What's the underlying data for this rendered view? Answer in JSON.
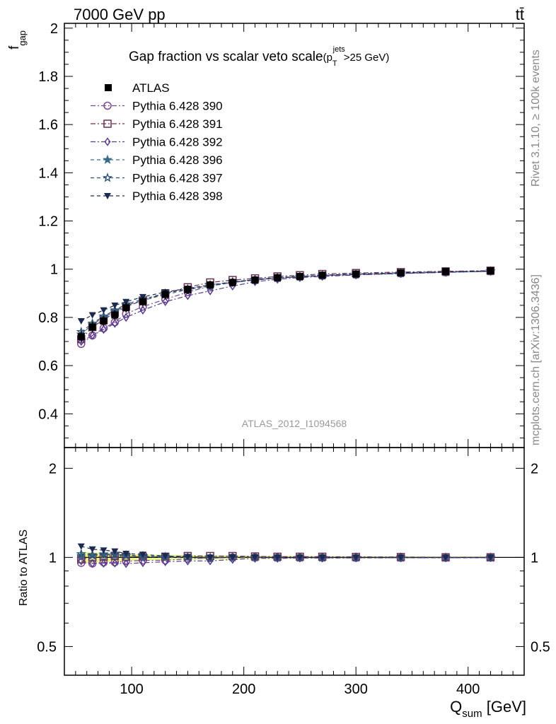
{
  "header": {
    "energy_label": "7000 GeV pp",
    "process_label": "tt̄"
  },
  "side_text": {
    "rivet": "Rivet 3.1.10, ≥ 100k events",
    "source": "mcplots.cern.ch [arXiv:1306.3436]"
  },
  "chart_data": [
    {
      "type": "line",
      "panel": "main",
      "title_main": "Gap fraction vs scalar veto scale",
      "title_cut": "(p",
      "title_cut_sup": "jets",
      "title_cut_sub": "T",
      "title_cut_tail": ">25 GeV)",
      "ylabel": "f",
      "ylabel_sub": "gap",
      "watermark": "ATLAS_2012_I1094568",
      "xlim": [
        40,
        450
      ],
      "ylim": [
        0.26,
        2.02
      ],
      "yticks": [
        0.4,
        0.6,
        0.8,
        1,
        1.2,
        1.4,
        1.6,
        1.8,
        2
      ],
      "ytick_labels": [
        "0.4",
        "0.6",
        "0.8",
        "1",
        "1.2",
        "1.4",
        "1.6",
        "1.8",
        "2"
      ],
      "legend_position": "top-left",
      "x": [
        55,
        65,
        75,
        85,
        95,
        110,
        130,
        150,
        170,
        190,
        210,
        230,
        250,
        270,
        300,
        340,
        380,
        420
      ],
      "data": {
        "name": "ATLAS",
        "values": [
          0.72,
          0.76,
          0.785,
          0.81,
          0.84,
          0.865,
          0.895,
          0.915,
          0.935,
          0.945,
          0.955,
          0.965,
          0.97,
          0.975,
          0.98,
          0.985,
          0.99,
          0.993
        ]
      },
      "series": [
        {
          "name": "Pythia 6.428 390",
          "color": "#7b4a8e",
          "marker": "circle-open",
          "dash": "7,3,2,3",
          "values": [
            0.69,
            0.725,
            0.755,
            0.78,
            0.815,
            0.845,
            0.875,
            0.905,
            0.93,
            0.945,
            0.955,
            0.963,
            0.968,
            0.973,
            0.977,
            0.982,
            0.987,
            0.991
          ]
        },
        {
          "name": "Pythia 6.428 391",
          "color": "#6b2f52",
          "marker": "square-open",
          "dash": "7,3,2,3",
          "values": [
            0.71,
            0.76,
            0.79,
            0.82,
            0.845,
            0.87,
            0.9,
            0.925,
            0.945,
            0.955,
            0.962,
            0.97,
            0.975,
            0.98,
            0.984,
            0.988,
            0.991,
            0.994
          ]
        },
        {
          "name": "Pythia 6.428 392",
          "color": "#5a3a8c",
          "marker": "diamond-open",
          "dash": "7,3,2,3",
          "values": [
            0.7,
            0.725,
            0.75,
            0.775,
            0.8,
            0.83,
            0.865,
            0.89,
            0.91,
            0.93,
            0.948,
            0.958,
            0.965,
            0.97,
            0.976,
            0.982,
            0.987,
            0.991
          ]
        },
        {
          "name": "Pythia 6.428 396",
          "color": "#3b6a8a",
          "marker": "star-filled",
          "dash": "5,4",
          "values": [
            0.73,
            0.77,
            0.8,
            0.825,
            0.85,
            0.87,
            0.895,
            0.915,
            0.93,
            0.945,
            0.955,
            0.963,
            0.968,
            0.973,
            0.978,
            0.983,
            0.988,
            0.991
          ]
        },
        {
          "name": "Pythia 6.428 397",
          "color": "#2e4f72",
          "marker": "star-open",
          "dash": "5,4",
          "values": [
            0.74,
            0.775,
            0.805,
            0.83,
            0.855,
            0.875,
            0.9,
            0.918,
            0.933,
            0.947,
            0.957,
            0.964,
            0.969,
            0.974,
            0.979,
            0.984,
            0.988,
            0.992
          ]
        },
        {
          "name": "Pythia 6.428 398",
          "color": "#1c2a50",
          "marker": "triangle-down-filled",
          "dash": "5,4",
          "values": [
            0.785,
            0.81,
            0.83,
            0.85,
            0.865,
            0.885,
            0.905,
            0.92,
            0.935,
            0.947,
            0.957,
            0.965,
            0.97,
            0.975,
            0.98,
            0.985,
            0.989,
            0.993
          ]
        }
      ]
    },
    {
      "type": "line",
      "panel": "ratio",
      "ylabel": "Ratio to ATLAS",
      "xlabel": "Q",
      "xlabel_sub": "sum",
      "xlabel_unit": " [GeV]",
      "xlim": [
        40,
        450
      ],
      "ylim": [
        0.4,
        2.35
      ],
      "yscale": "log",
      "xticks": [
        100,
        200,
        300,
        400
      ],
      "xtick_labels": [
        "100",
        "200",
        "300",
        "400"
      ],
      "yticks": [
        0.5,
        1,
        2
      ],
      "ytick_labels": [
        "0.5",
        "1",
        "2"
      ],
      "band_color": "#e8f88a",
      "band_relative_error": [
        0.045,
        0.04,
        0.035,
        0.032,
        0.028,
        0.024,
        0.02,
        0.017,
        0.015,
        0.013,
        0.012,
        0.011,
        0.01,
        0.009,
        0.008,
        0.007,
        0.006,
        0.006
      ]
    }
  ]
}
